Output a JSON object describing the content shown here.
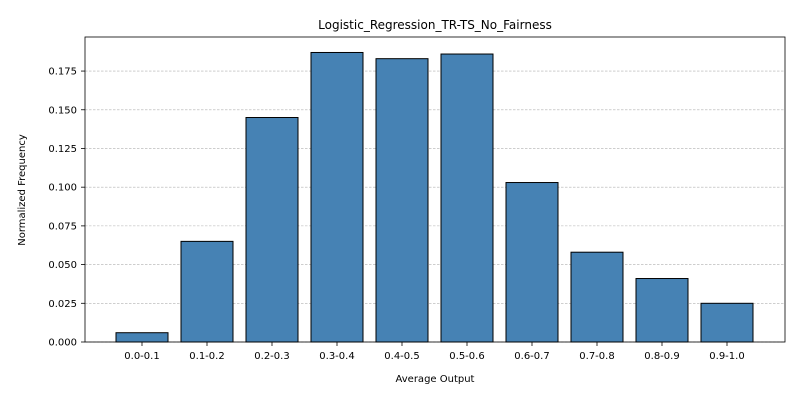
{
  "chart_data": {
    "type": "bar",
    "title": "Logistic_Regression_TR-TS_No_Fairness",
    "xlabel": "Average Output",
    "ylabel": "Normalized Frequency",
    "categories": [
      "0.0-0.1",
      "0.1-0.2",
      "0.2-0.3",
      "0.3-0.4",
      "0.4-0.5",
      "0.5-0.6",
      "0.6-0.7",
      "0.7-0.8",
      "0.8-0.9",
      "0.9-1.0"
    ],
    "values": [
      0.006,
      0.065,
      0.145,
      0.187,
      0.183,
      0.186,
      0.103,
      0.058,
      0.041,
      0.025
    ],
    "ylim": [
      0,
      0.197
    ],
    "yticks": [
      "0.000",
      "0.025",
      "0.050",
      "0.075",
      "0.100",
      "0.125",
      "0.150",
      "0.175"
    ],
    "grid": "horizontal dashed",
    "legend": "none",
    "bar_color": "#4682b4",
    "bar_edge_color": "#000000"
  }
}
